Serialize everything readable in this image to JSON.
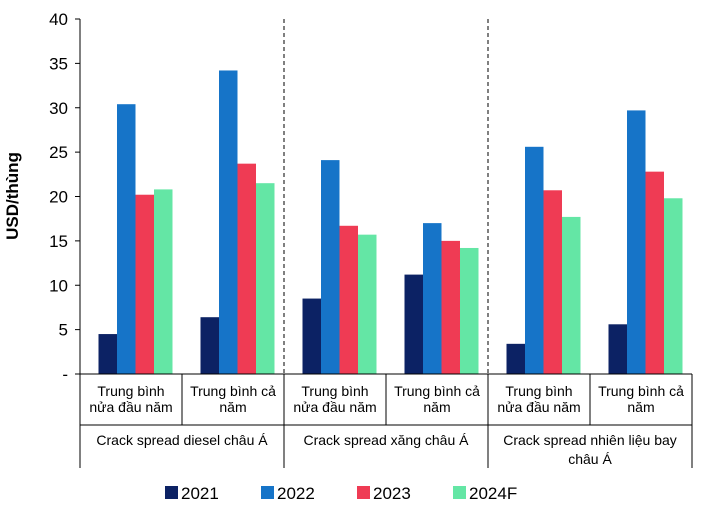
{
  "chart_data": {
    "type": "bar",
    "ylabel": "USD/thùng",
    "ylim": [
      0,
      40
    ],
    "yticks": [
      0,
      5,
      10,
      15,
      20,
      25,
      30,
      35,
      40
    ],
    "ytick_labels": [
      "-",
      "5",
      "10",
      "15",
      "20",
      "25",
      "30",
      "35",
      "40"
    ],
    "categories": [
      "Trung bình nửa đầu năm",
      "Trung bình cả năm",
      "Trung bình nửa đầu năm",
      "Trung bình cả năm",
      "Trung bình nửa đầu năm",
      "Trung bình cả năm"
    ],
    "category_lines": [
      [
        "Trung bình",
        "nửa đầu năm"
      ],
      [
        "Trung bình cả",
        "năm"
      ],
      [
        "Trung bình",
        "nửa đầu năm"
      ],
      [
        "Trung bình cả",
        "năm"
      ],
      [
        "Trung bình",
        "nửa đầu năm"
      ],
      [
        "Trung bình cả",
        "năm"
      ]
    ],
    "groups": [
      {
        "lines": [
          "Crack spread diesel châu Á"
        ],
        "categories": [
          0,
          1
        ]
      },
      {
        "lines": [
          "Crack spread xăng châu Á"
        ],
        "categories": [
          2,
          3
        ]
      },
      {
        "lines": [
          "Crack spread nhiên liệu bay",
          "châu Á"
        ],
        "categories": [
          4,
          5
        ]
      }
    ],
    "series": [
      {
        "name": "2021",
        "color": "#0c2264",
        "values": [
          4.5,
          6.4,
          8.5,
          11.2,
          3.4,
          5.6
        ]
      },
      {
        "name": "2022",
        "color": "#1674c8",
        "values": [
          30.4,
          34.2,
          24.1,
          17.0,
          25.6,
          29.7
        ]
      },
      {
        "name": "2023",
        "color": "#ef3b54",
        "values": [
          20.2,
          23.7,
          16.7,
          15.0,
          20.7,
          22.8
        ]
      },
      {
        "name": "2024F",
        "color": "#64e6a5",
        "values": [
          20.8,
          21.5,
          15.7,
          14.2,
          17.7,
          19.8
        ]
      }
    ],
    "grid": false,
    "legend_position": "bottom",
    "group_separators": "dashed"
  }
}
